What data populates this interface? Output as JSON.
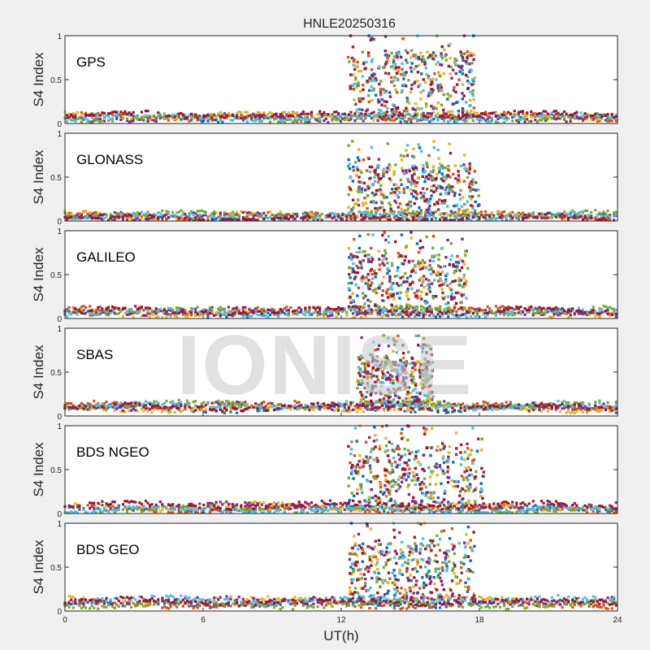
{
  "figure_title": "HNLE20250316",
  "watermark": "IONISE",
  "colors": [
    "#0072bd",
    "#d95319",
    "#edb120",
    "#7e2f8e",
    "#77ac30",
    "#4dbeee",
    "#a2142f"
  ],
  "chart_data": [
    {
      "type": "scatter",
      "label": "GPS",
      "ylabel": "S4 Index",
      "xlim": [
        0,
        24
      ],
      "ylim": [
        0,
        1
      ],
      "yticks": [
        "0",
        "0.5",
        "1"
      ],
      "background_level": 0.08,
      "scintillation_window_h": [
        12.3,
        17.8
      ],
      "series_count": 7,
      "seed": 11,
      "burst_intensity": 0.75
    },
    {
      "type": "scatter",
      "label": "GLONASS",
      "ylabel": "S4 Index",
      "xlim": [
        0,
        24
      ],
      "ylim": [
        0,
        1
      ],
      "yticks": [
        "0",
        "0.5",
        "1"
      ],
      "background_level": 0.06,
      "scintillation_window_h": [
        12.3,
        18.0
      ],
      "series_count": 7,
      "seed": 23,
      "burst_intensity": 0.6
    },
    {
      "type": "scatter",
      "label": "GALILEO",
      "ylabel": "S4 Index",
      "xlim": [
        0,
        24
      ],
      "ylim": [
        0,
        1
      ],
      "yticks": [
        "0",
        "0.5",
        "1"
      ],
      "background_level": 0.08,
      "scintillation_window_h": [
        12.3,
        17.5
      ],
      "series_count": 7,
      "seed": 37,
      "burst_intensity": 0.65
    },
    {
      "type": "scatter",
      "label": "SBAS",
      "ylabel": "S4 Index",
      "xlim": [
        0,
        24
      ],
      "ylim": [
        0,
        1
      ],
      "yticks": [
        "0",
        "0.5",
        "1"
      ],
      "background_level": 0.1,
      "scintillation_window_h": [
        12.7,
        16.0
      ],
      "series_count": 7,
      "seed": 41,
      "burst_intensity": 0.55
    },
    {
      "type": "scatter",
      "label": "BDS NGEO",
      "ylabel": "S4 Index",
      "xlim": [
        0,
        24
      ],
      "ylim": [
        0,
        1
      ],
      "yticks": [
        "0",
        "0.5",
        "1"
      ],
      "background_level": 0.07,
      "scintillation_window_h": [
        12.3,
        18.2
      ],
      "series_count": 7,
      "seed": 53,
      "burst_intensity": 0.7
    },
    {
      "type": "scatter",
      "label": "BDS GEO",
      "ylabel": "S4 Index",
      "xlim": [
        0,
        24
      ],
      "ylim": [
        0,
        1
      ],
      "yticks": [
        "0",
        "0.5",
        "1"
      ],
      "background_level": 0.1,
      "scintillation_window_h": [
        12.3,
        17.8
      ],
      "series_count": 7,
      "seed": 67,
      "burst_intensity": 0.7
    }
  ],
  "xaxis": {
    "label": "UT(h)",
    "ticks": [
      0,
      6,
      12,
      18,
      24
    ]
  }
}
